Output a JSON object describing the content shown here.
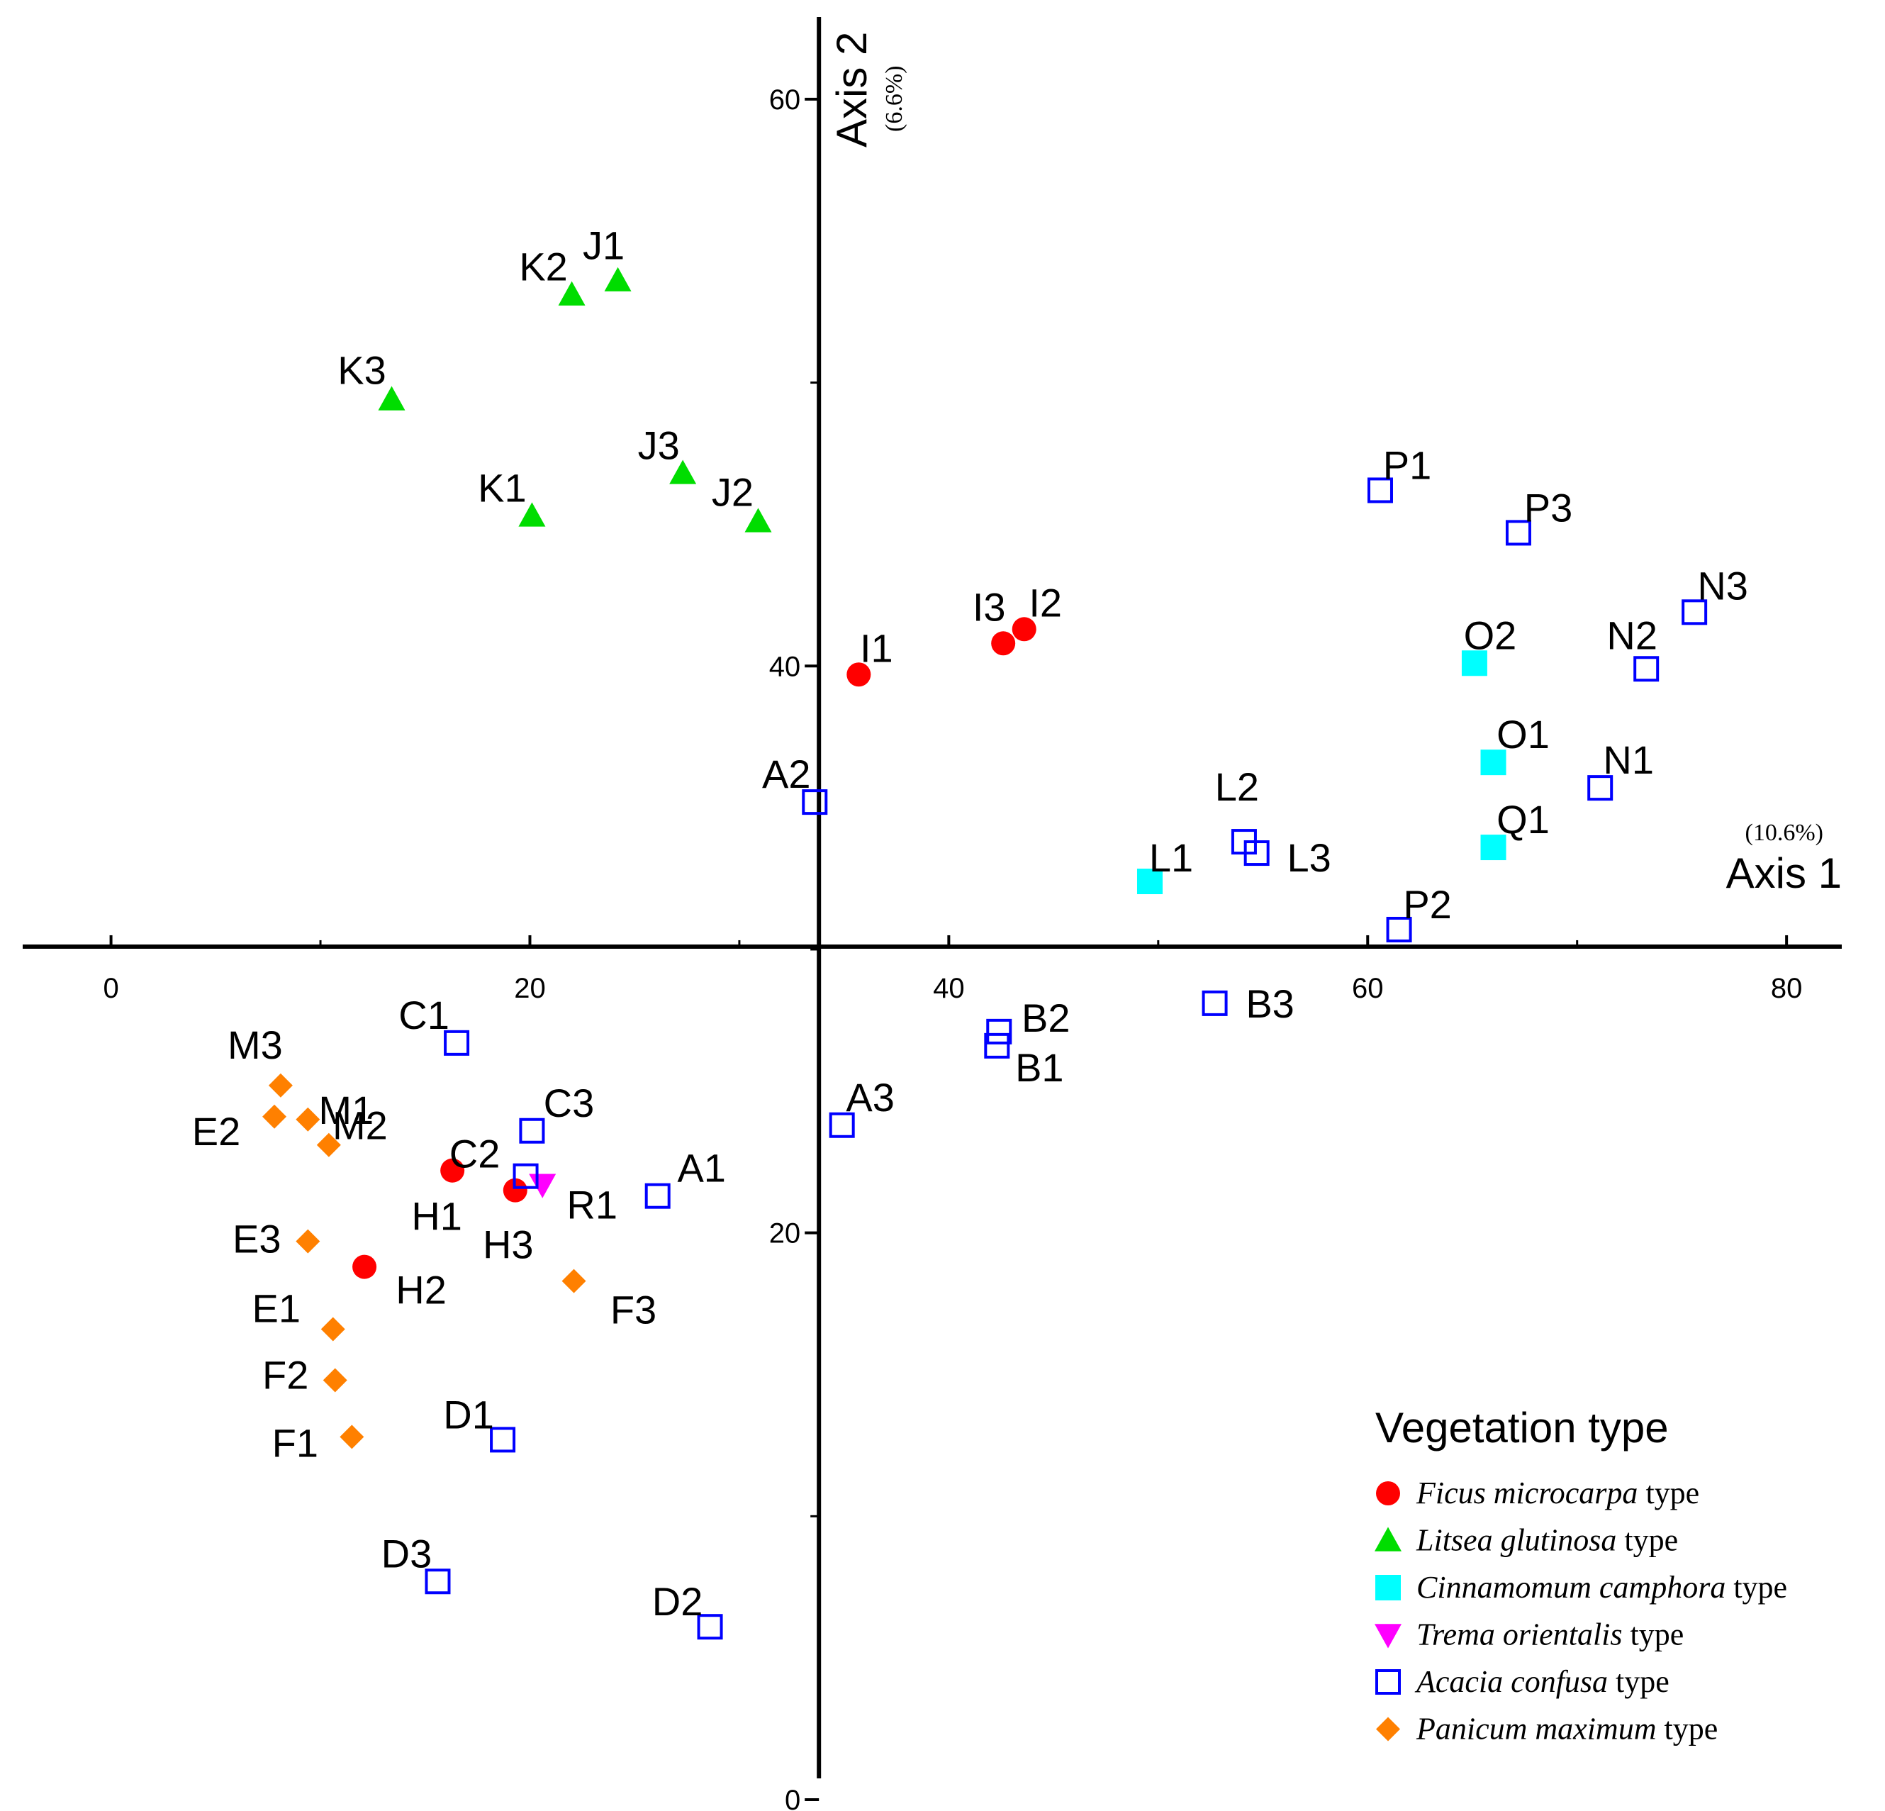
{
  "chart_data": {
    "type": "scatter",
    "axes": {
      "x": {
        "title": "Axis 1",
        "percent": "(10.6%)",
        "range": [
          -5.3,
          84.7
        ],
        "ticks": [
          0,
          20,
          40,
          60,
          80
        ],
        "minor_ticks": [
          10,
          30,
          50,
          70
        ],
        "tick_labels": [
          "0",
          "20",
          "40",
          "60",
          "80"
        ]
      },
      "y": {
        "title": "Axis 2",
        "percent": "(6.6%)",
        "range": [
          -0.4,
          63.5
        ],
        "ticks": [
          0,
          20,
          40,
          60
        ],
        "minor_ticks": [
          10,
          30,
          50
        ],
        "tick_labels": [
          "0",
          "20",
          "40",
          "60"
        ],
        "crossing_y": 30.1
      },
      "y_axis_x": 33.8
    },
    "legend": {
      "title": "Vegetation type",
      "position": "bottom-right"
    },
    "series": [
      {
        "key": "ficus",
        "species": "Ficus microcarpa",
        "suffix": "type",
        "marker": "circle",
        "color": "#ff0000",
        "points": [
          {
            "label": "I1",
            "x": 35.7,
            "y": 39.7
          },
          {
            "label": "I3",
            "x": 42.6,
            "y": 40.8
          },
          {
            "label": "I2",
            "x": 43.6,
            "y": 41.3
          },
          {
            "label": "H1",
            "x": 16.3,
            "y": 22.2
          },
          {
            "label": "H3",
            "x": 19.3,
            "y": 21.5
          },
          {
            "label": "H2",
            "x": 12.1,
            "y": 18.8
          }
        ]
      },
      {
        "key": "litsea",
        "species": "Litsea glutinosa",
        "suffix": "type",
        "marker": "triangle-up",
        "color": "#00dd00",
        "points": [
          {
            "label": "K2",
            "x": 22.0,
            "y": 53.1
          },
          {
            "label": "J1",
            "x": 24.2,
            "y": 53.6
          },
          {
            "label": "K3",
            "x": 13.4,
            "y": 49.4
          },
          {
            "label": "J3",
            "x": 27.3,
            "y": 46.8
          },
          {
            "label": "K1",
            "x": 20.1,
            "y": 45.3
          },
          {
            "label": "J2",
            "x": 30.9,
            "y": 45.1
          }
        ]
      },
      {
        "key": "cinnamomum",
        "species": "Cinnamomum  camphora",
        "suffix": "type",
        "marker": "square-filled",
        "color": "#00ffff",
        "points": [
          {
            "label": "O2",
            "x": 65.1,
            "y": 40.1
          },
          {
            "label": "O1",
            "x": 66.0,
            "y": 36.6
          },
          {
            "label": "Q1",
            "x": 66.0,
            "y": 33.6
          },
          {
            "label": "L1",
            "x": 49.6,
            "y": 32.4
          }
        ]
      },
      {
        "key": "trema",
        "species": "Trema orientalis",
        "suffix": "type",
        "marker": "triangle-down",
        "color": "#ff00ff",
        "points": [
          {
            "label": "R1",
            "x": 20.6,
            "y": 21.7
          }
        ]
      },
      {
        "key": "acacia",
        "species": "Acacia confusa",
        "suffix": "type",
        "marker": "square-open",
        "color": "#0000ff",
        "points": [
          {
            "label": "P1",
            "x": 60.6,
            "y": 46.2
          },
          {
            "label": "P3",
            "x": 67.2,
            "y": 44.7
          },
          {
            "label": "N3",
            "x": 75.6,
            "y": 41.9
          },
          {
            "label": "N2",
            "x": 73.3,
            "y": 39.9
          },
          {
            "label": "N1",
            "x": 71.1,
            "y": 35.7
          },
          {
            "label": "A2",
            "x": 33.6,
            "y": 35.2
          },
          {
            "label": "L2",
            "x": 54.1,
            "y": 33.8
          },
          {
            "label": "L3",
            "x": 54.7,
            "y": 33.4
          },
          {
            "label": "P2",
            "x": 61.5,
            "y": 30.7
          },
          {
            "label": "B3",
            "x": 52.7,
            "y": 28.1
          },
          {
            "label": "B2",
            "x": 42.4,
            "y": 27.1
          },
          {
            "label": "B1",
            "x": 42.3,
            "y": 26.6
          },
          {
            "label": "C1",
            "x": 16.5,
            "y": 26.7
          },
          {
            "label": "C3",
            "x": 20.1,
            "y": 23.6
          },
          {
            "label": "C2",
            "x": 19.8,
            "y": 22.0
          },
          {
            "label": "A3",
            "x": 34.9,
            "y": 23.8
          },
          {
            "label": "A1",
            "x": 26.1,
            "y": 21.3
          },
          {
            "label": "D1",
            "x": 18.7,
            "y": 12.7
          },
          {
            "label": "D3",
            "x": 15.6,
            "y": 7.7
          },
          {
            "label": "D2",
            "x": 28.6,
            "y": 6.1
          }
        ]
      },
      {
        "key": "panicum",
        "species": "Panicum maximum",
        "suffix": "type",
        "marker": "diamond",
        "color": "#ff8000",
        "points": [
          {
            "label": "M3",
            "x": 8.1,
            "y": 25.2
          },
          {
            "label": "M1",
            "x": 9.4,
            "y": 24.0
          },
          {
            "label": "E2",
            "x": 7.8,
            "y": 24.1
          },
          {
            "label": "M2",
            "x": 10.4,
            "y": 23.1
          },
          {
            "label": "E3",
            "x": 9.4,
            "y": 19.7
          },
          {
            "label": "F3",
            "x": 22.1,
            "y": 18.3
          },
          {
            "label": "E1",
            "x": 10.6,
            "y": 16.6
          },
          {
            "label": "F2",
            "x": 10.7,
            "y": 14.8
          },
          {
            "label": "F1",
            "x": 11.5,
            "y": 12.8
          }
        ]
      }
    ]
  }
}
